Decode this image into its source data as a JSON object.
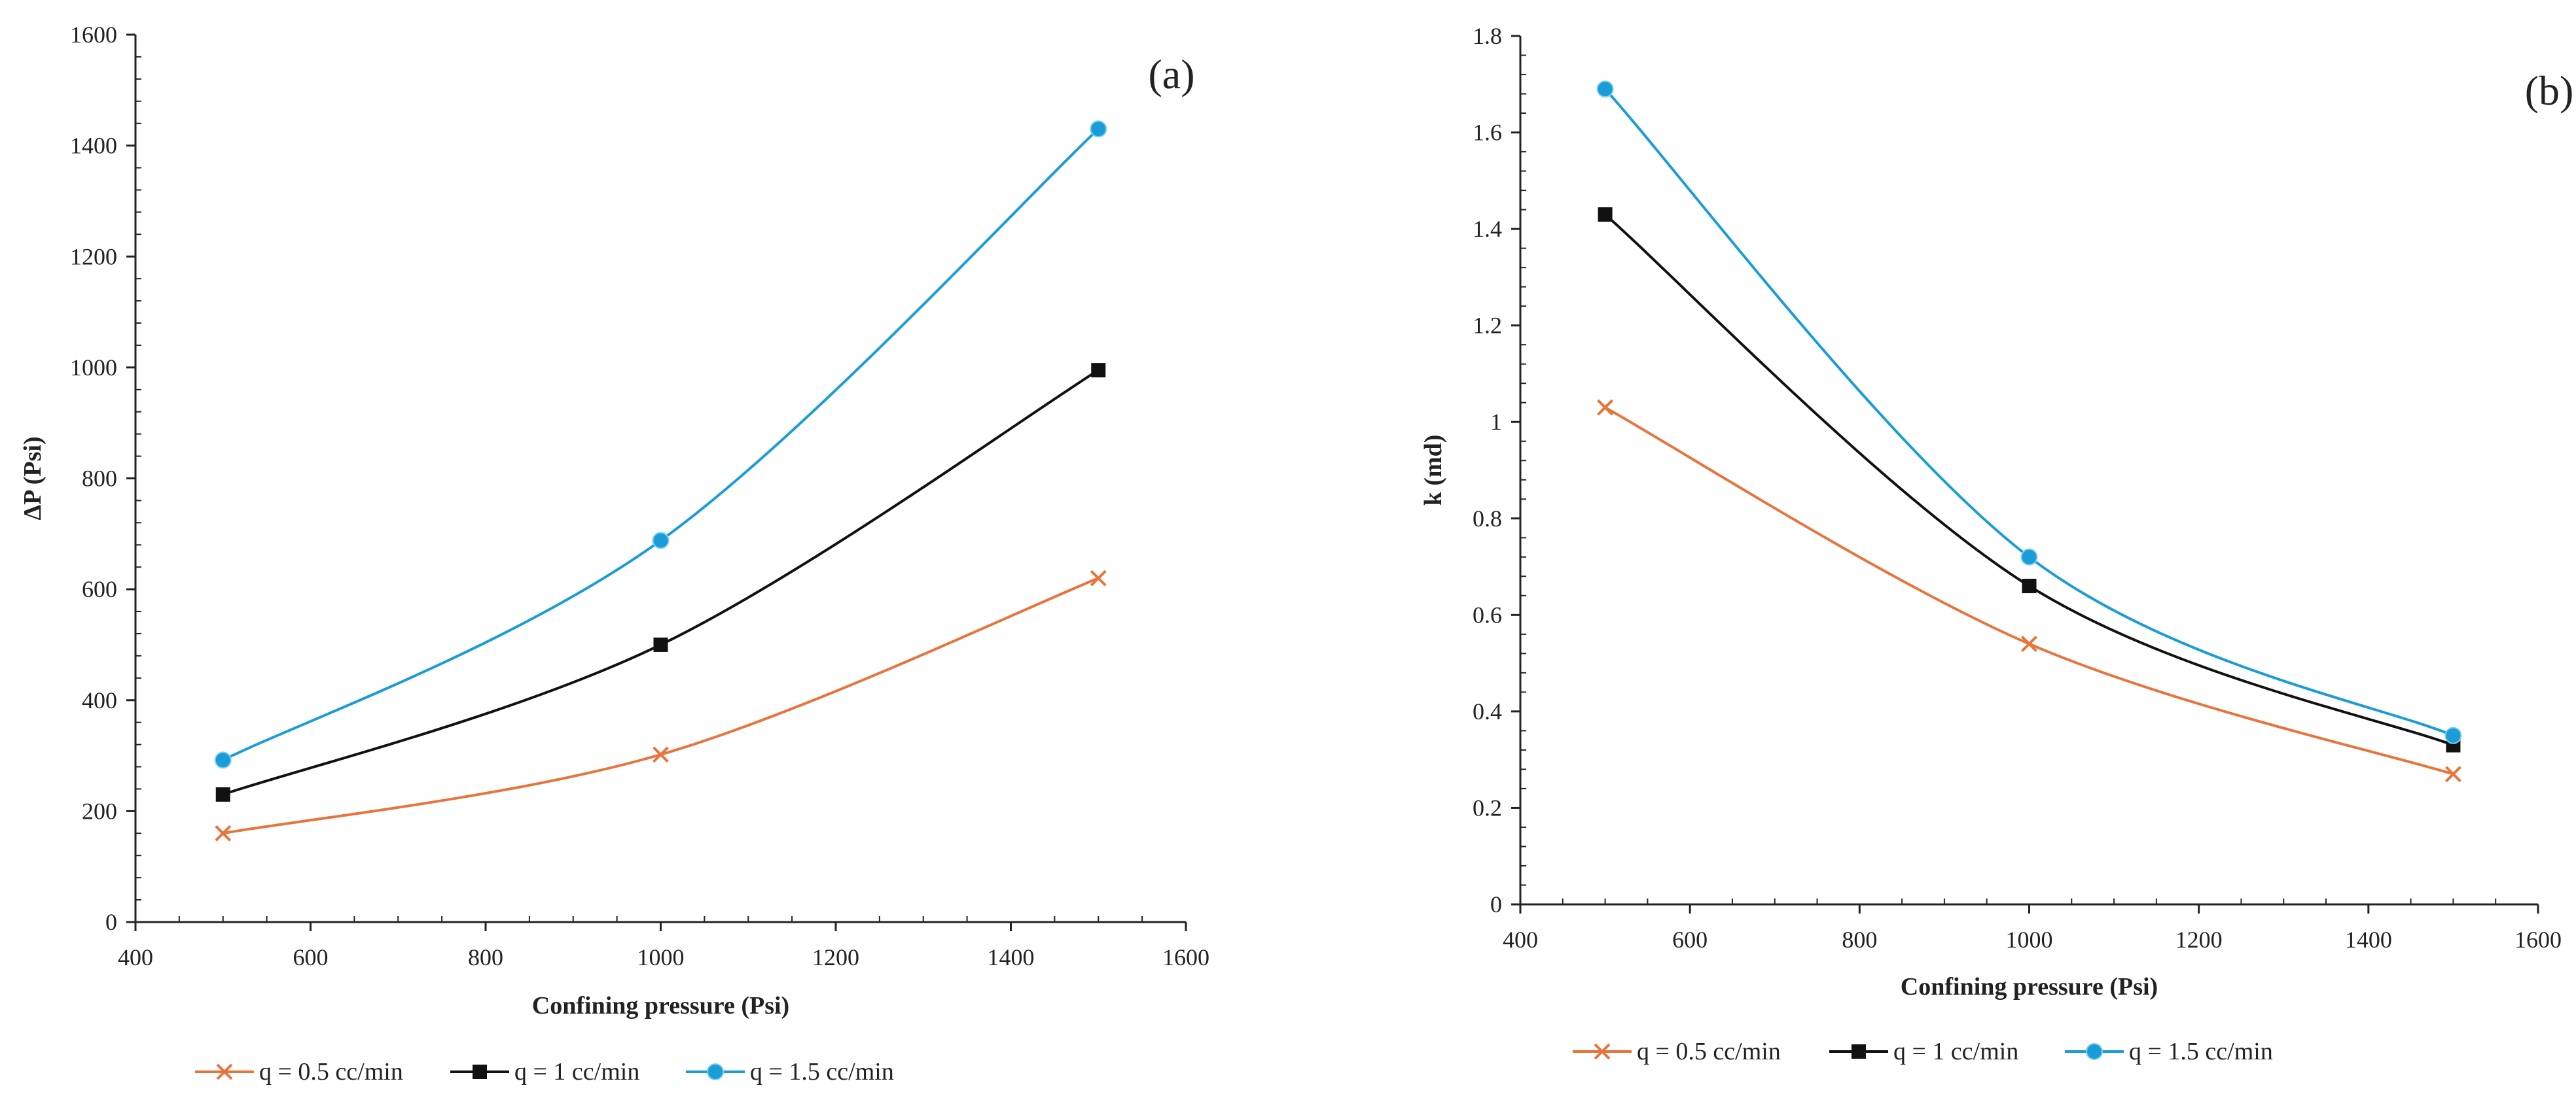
{
  "chart_data": [
    {
      "type": "line",
      "panel_label": "(a)",
      "title": "",
      "xlabel": "Confining pressure (Psi)",
      "ylabel": "ΔP (Psi)",
      "xlim": [
        400,
        1600
      ],
      "ylim": [
        0,
        1600
      ],
      "xticks": [
        400,
        600,
        800,
        1000,
        1200,
        1400,
        1600
      ],
      "yticks": [
        0,
        200,
        400,
        600,
        800,
        1000,
        1200,
        1400,
        1600
      ],
      "grid": false,
      "legend_position": "bottom",
      "x": [
        500,
        1000,
        1500
      ],
      "series": [
        {
          "name": "q = 0.5 cc/min",
          "values": [
            160,
            302,
            620
          ],
          "color": "#E8743B",
          "marker": "x"
        },
        {
          "name": "q = 1 cc/min",
          "values": [
            230,
            500,
            995
          ],
          "color": "#111111",
          "marker": "square"
        },
        {
          "name": "q = 1.5 cc/min",
          "values": [
            292,
            688,
            1430
          ],
          "color": "#1A9CD8",
          "marker": "circle"
        }
      ]
    },
    {
      "type": "line",
      "panel_label": "(b)",
      "title": "",
      "xlabel": "Confining pressure (Psi)",
      "ylabel": "k (md)",
      "xlim": [
        400,
        1600
      ],
      "ylim": [
        0,
        1.8
      ],
      "xticks": [
        400,
        600,
        800,
        1000,
        1200,
        1400,
        1600
      ],
      "yticks": [
        0,
        0.2,
        0.4,
        0.6,
        0.8,
        1,
        1.2,
        1.4,
        1.6,
        1.8
      ],
      "grid": false,
      "legend_position": "bottom",
      "x": [
        500,
        1000,
        1500
      ],
      "series": [
        {
          "name": "q = 0.5 cc/min",
          "values": [
            1.03,
            0.54,
            0.27
          ],
          "color": "#E8743B",
          "marker": "x"
        },
        {
          "name": "q = 1 cc/min",
          "values": [
            1.43,
            0.66,
            0.33
          ],
          "color": "#111111",
          "marker": "square"
        },
        {
          "name": "q = 1.5 cc/min",
          "values": [
            1.69,
            0.72,
            0.35
          ],
          "color": "#1A9CD8",
          "marker": "circle"
        }
      ]
    }
  ]
}
